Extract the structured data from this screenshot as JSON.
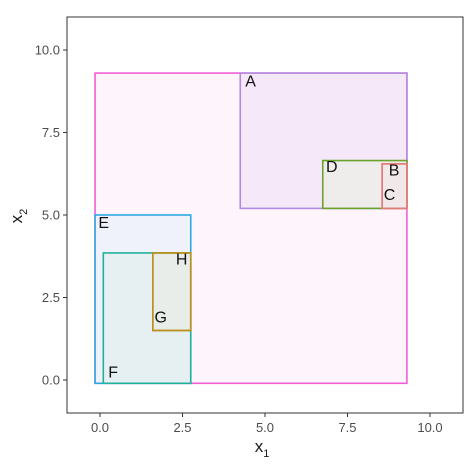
{
  "chart_data": {
    "type": "rectangles",
    "xlabel": "x",
    "xlabel_subscript": "1",
    "ylabel": "x",
    "ylabel_subscript": "2",
    "xlim": [
      -1.0,
      11.0
    ],
    "ylim": [
      -1.0,
      11.0
    ],
    "xticks": [
      {
        "value": 0.0,
        "label": "0.0"
      },
      {
        "value": 2.5,
        "label": "2.5"
      },
      {
        "value": 5.0,
        "label": "5.0"
      },
      {
        "value": 7.5,
        "label": "7.5"
      },
      {
        "value": 10.0,
        "label": "10.0"
      }
    ],
    "yticks": [
      {
        "value": 0.0,
        "label": "0.0"
      },
      {
        "value": 2.5,
        "label": "2.5"
      },
      {
        "value": 5.0,
        "label": "5.0"
      },
      {
        "value": 7.5,
        "label": "7.5"
      },
      {
        "value": 10.0,
        "label": "10.0"
      }
    ],
    "grid": false,
    "rectangles": [
      {
        "name": "outer",
        "label": "",
        "xmin": -0.15,
        "xmax": 9.3,
        "ymin": -0.1,
        "ymax": 9.3,
        "color": "#f15fd2",
        "fill": "#fde8f8",
        "fill_opacity": 0.45
      },
      {
        "name": "A",
        "label": "A",
        "xmin": 4.25,
        "xmax": 9.3,
        "ymin": 5.2,
        "ymax": 9.3,
        "color": "#b28be0",
        "fill": "#eadcf6",
        "fill_opacity": 0.45
      },
      {
        "name": "D",
        "label": "D",
        "xmin": 6.75,
        "xmax": 9.3,
        "ymin": 5.2,
        "ymax": 6.65,
        "color": "#6aa32a",
        "fill": "#eaeee2",
        "fill_opacity": 0.55
      },
      {
        "name": "B",
        "label": "B",
        "xmin": 8.55,
        "xmax": 9.3,
        "ymin": 5.2,
        "ymax": 6.55,
        "color": "#e27d7b",
        "fill": "#f3e4e6",
        "fill_opacity": 0.5
      },
      {
        "name": "C",
        "label": "C",
        "xmin": 8.55,
        "xmax": 9.3,
        "ymin": 5.2,
        "ymax": 6.55,
        "color": "#e27d7b",
        "fill": "#f3e4e6",
        "fill_opacity": 0.0
      },
      {
        "name": "E",
        "label": "E",
        "xmin": -0.15,
        "xmax": 2.75,
        "ymin": -0.1,
        "ymax": 5.0,
        "color": "#2ea8e0",
        "fill": "#e4eefa",
        "fill_opacity": 0.55
      },
      {
        "name": "F",
        "label": "F",
        "xmin": 0.1,
        "xmax": 2.75,
        "ymin": -0.1,
        "ymax": 3.85,
        "color": "#20b39a",
        "fill": "#dfece9",
        "fill_opacity": 0.55
      },
      {
        "name": "H",
        "label": "H",
        "xmin": 1.6,
        "xmax": 2.75,
        "ymin": 1.5,
        "ymax": 3.85,
        "color": "#b8921e",
        "fill": "#e9ebe4",
        "fill_opacity": 0.55
      },
      {
        "name": "G",
        "label": "G",
        "xmin": 1.6,
        "xmax": 2.75,
        "ymin": 1.5,
        "ymax": 3.85,
        "color": "#b8921e",
        "fill": "#e9ebe4",
        "fill_opacity": 0.0
      }
    ],
    "labels": [
      {
        "text": "A",
        "x": 4.4,
        "y": 8.9
      },
      {
        "text": "B",
        "x": 8.75,
        "y": 6.2
      },
      {
        "text": "C",
        "x": 8.6,
        "y": 5.45
      },
      {
        "text": "D",
        "x": 6.85,
        "y": 6.3
      },
      {
        "text": "E",
        "x": -0.05,
        "y": 4.6
      },
      {
        "text": "F",
        "x": 0.25,
        "y": 0.08
      },
      {
        "text": "G",
        "x": 1.65,
        "y": 1.75
      },
      {
        "text": "H",
        "x": 2.3,
        "y": 3.5
      }
    ]
  }
}
